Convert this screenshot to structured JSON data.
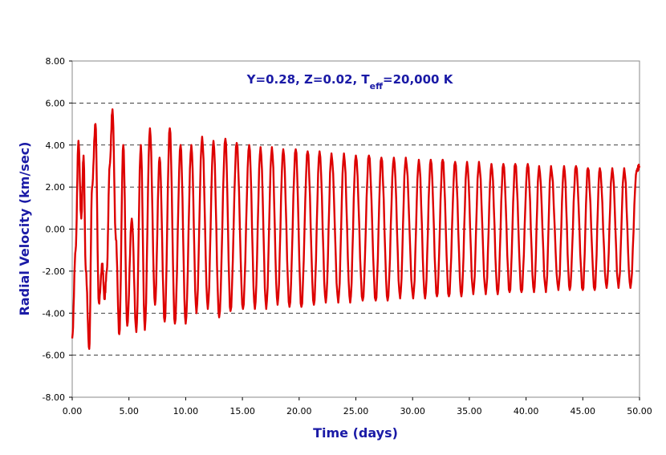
{
  "chart_data": {
    "type": "line",
    "title": {
      "prefix": "Y=0.28, Z=0.02, T",
      "subscript": "eff",
      "suffix": "=20,000 K"
    },
    "xlabel": "Time (days)",
    "ylabel": "Radial Velocity (km/sec)",
    "xlim": [
      0,
      50
    ],
    "ylim": [
      -8,
      8
    ],
    "x_ticks": [
      "0.00",
      "5.00",
      "10.00",
      "15.00",
      "20.00",
      "25.00",
      "30.00",
      "35.00",
      "40.00",
      "45.00",
      "50.00"
    ],
    "y_ticks": [
      "8.00",
      "6.00",
      "4.00",
      "2.00",
      "0.00",
      "-2.00",
      "-4.00",
      "-6.00",
      "-8.00"
    ],
    "grid": {
      "horizontal_dashed": [
        6,
        4,
        2,
        0,
        -2,
        -4,
        -6
      ]
    },
    "line_color": "#dd0000",
    "series": [
      {
        "x": [
          0.0,
          0.3,
          0.55,
          0.8,
          1.0,
          1.2,
          1.5,
          1.75,
          2.05,
          2.35,
          2.65,
          2.85,
          3.05,
          3.3,
          3.55,
          3.85,
          4.15,
          4.5,
          4.85,
          5.25,
          5.65,
          6.05,
          6.4,
          6.85,
          7.3,
          7.7,
          8.15,
          8.6,
          9.05,
          9.55,
          10.0,
          10.5,
          10.95,
          11.45,
          11.95,
          12.45,
          12.95,
          13.5,
          13.95,
          14.5,
          15.05,
          15.6,
          16.1,
          16.6,
          17.1,
          17.6,
          18.1,
          18.6,
          19.15,
          19.7,
          20.2,
          20.75,
          21.3,
          21.8,
          22.35,
          22.85,
          23.45,
          23.95,
          24.5,
          25.0,
          25.6,
          26.15,
          26.75,
          27.25,
          27.8,
          28.35,
          28.9,
          29.4,
          30.05,
          30.55,
          31.1,
          31.6,
          32.15,
          32.65,
          33.2,
          33.75,
          34.3,
          34.8,
          35.35,
          35.85,
          36.45,
          36.95,
          37.5,
          38.0,
          38.55,
          39.05,
          39.6,
          40.15,
          40.7,
          41.15,
          41.75,
          42.2,
          42.85,
          43.35,
          43.85,
          44.4,
          45.0,
          45.45,
          46.05,
          46.5,
          47.1,
          47.6,
          48.15,
          48.65,
          49.2,
          49.75,
          50.0
        ],
        "y": [
          -5.2,
          -1.0,
          4.2,
          0.5,
          3.5,
          -2.0,
          -5.7,
          2.0,
          5.0,
          -3.5,
          -1.7,
          -3.3,
          -2.0,
          3.0,
          5.7,
          -0.5,
          -5.0,
          4.0,
          -4.6,
          0.5,
          -4.9,
          4.0,
          -4.8,
          4.8,
          -3.6,
          3.4,
          -4.4,
          4.8,
          -4.5,
          4.0,
          -4.5,
          4.0,
          -4.0,
          4.4,
          -3.8,
          4.2,
          -4.2,
          4.3,
          -3.9,
          4.1,
          -3.8,
          4.0,
          -3.8,
          3.9,
          -3.8,
          3.9,
          -3.6,
          3.8,
          -3.7,
          3.8,
          -3.7,
          3.7,
          -3.6,
          3.7,
          -3.5,
          3.6,
          -3.5,
          3.6,
          -3.5,
          3.5,
          -3.4,
          3.5,
          -3.4,
          3.4,
          -3.4,
          3.4,
          -3.3,
          3.4,
          -3.3,
          3.3,
          -3.3,
          3.3,
          -3.2,
          3.3,
          -3.2,
          3.2,
          -3.2,
          3.2,
          -3.1,
          3.2,
          -3.1,
          3.1,
          -3.1,
          3.1,
          -3.0,
          3.1,
          -3.0,
          3.1,
          -3.0,
          3.0,
          -3.0,
          3.0,
          -2.9,
          3.0,
          -2.9,
          3.0,
          -2.9,
          2.9,
          -2.9,
          2.9,
          -2.8,
          2.9,
          -2.8,
          2.9,
          -2.8,
          2.8,
          3.0
        ]
      }
    ]
  }
}
